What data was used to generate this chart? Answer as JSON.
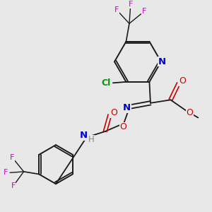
{
  "bg_color": "#e8e8e8",
  "bond_color": "#1a1a1a",
  "colors": {
    "N": "#0000cc",
    "O": "#cc0000",
    "F": "#cc00cc",
    "Cl": "#009900",
    "C": "#1a1a1a",
    "H": "#888888"
  },
  "font_size": 8.5
}
